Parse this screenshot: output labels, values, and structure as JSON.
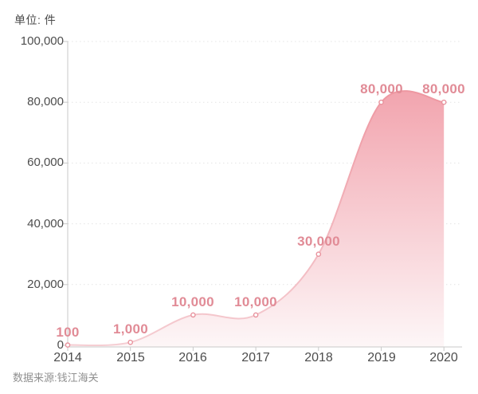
{
  "chart_data": {
    "type": "area",
    "title": "",
    "unit_label": "单位: 件",
    "source": "数据来源:钱江海关",
    "categories": [
      "2014",
      "2015",
      "2016",
      "2017",
      "2018",
      "2019",
      "2020"
    ],
    "values": [
      100,
      1000,
      10000,
      10000,
      30000,
      80000,
      80000
    ],
    "value_labels": [
      "100",
      "1,000",
      "10,000",
      "10,000",
      "30,000",
      "80,000",
      "80,000"
    ],
    "xlabel": "",
    "ylabel": "",
    "ylim": [
      0,
      100000
    ],
    "y_tick_values": [
      0,
      20000,
      40000,
      60000,
      80000,
      100000
    ],
    "y_tick_labels": [
      "0",
      "20,000",
      "40,000",
      "60,000",
      "80,000",
      "100,000"
    ],
    "grid": "dotted-horizontal",
    "legend": "none",
    "colors": {
      "area_top": "#f2a4ae",
      "area_bottom": "#fdf6f7",
      "line_top": "#ee97a1",
      "line_bottom": "#f5cdd2",
      "point_fill": "#ffffff",
      "point_stroke": "#e8919c",
      "data_label": "#e18b96",
      "axis": "#c9c9c9",
      "gridline": "#e4e4e4",
      "tick_label": "#4d4d4d",
      "source_text": "#8f8f8f"
    }
  }
}
